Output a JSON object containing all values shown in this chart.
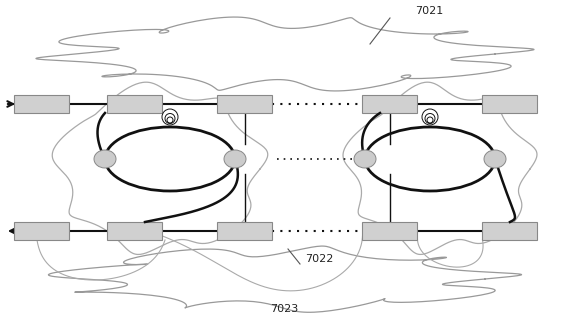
{
  "fig_width": 5.69,
  "fig_height": 3.24,
  "dpi": 100,
  "bg_color": "#ffffff",
  "label_7021": "7021",
  "label_7022": "7022",
  "label_7023": "7023",
  "box_color": "#d0d0d0",
  "box_edge": "#888888",
  "line_color_dark": "#111111",
  "line_color_gray": "#aaaaaa",
  "node_color": "#cccccc",
  "cloud_color": "#999999"
}
